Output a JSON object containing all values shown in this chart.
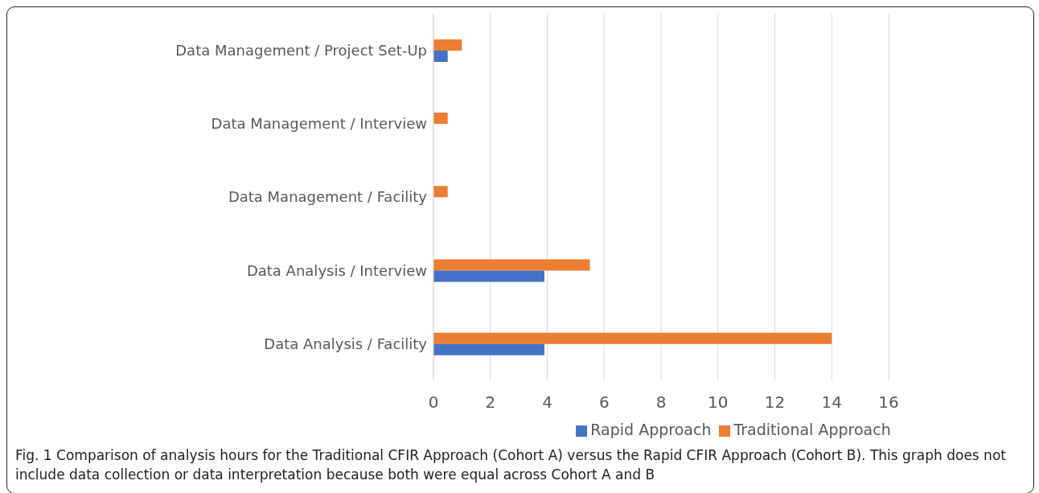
{
  "chart_data": {
    "type": "bar",
    "orientation": "horizontal",
    "categories": [
      "Data Management / Project Set-Up",
      "Data Management / Interview",
      "Data Management / Facility",
      "Data Analysis / Interview",
      "Data Analysis / Facility"
    ],
    "series": [
      {
        "name": "Traditional Approach",
        "color": "#ed7d31",
        "values": [
          1,
          0.5,
          0.5,
          5.5,
          14
        ]
      },
      {
        "name": "Rapid Approach",
        "color": "#4472c4",
        "values": [
          0.5,
          0,
          0,
          3.9,
          3.9
        ]
      }
    ],
    "xlim": [
      0,
      16
    ],
    "xticks": [
      0,
      2,
      4,
      6,
      8,
      10,
      12,
      14,
      16
    ],
    "grid": "x",
    "legend": "bottom",
    "annotations": [
      "Fig. 1 Comparison of analysis hours for the Traditional CFIR Approach (Cohort A) versus the Rapid CFIR Approach (Cohort B). This graph does not include data collection or data interpretation because both were equal across Cohort A and B"
    ]
  }
}
